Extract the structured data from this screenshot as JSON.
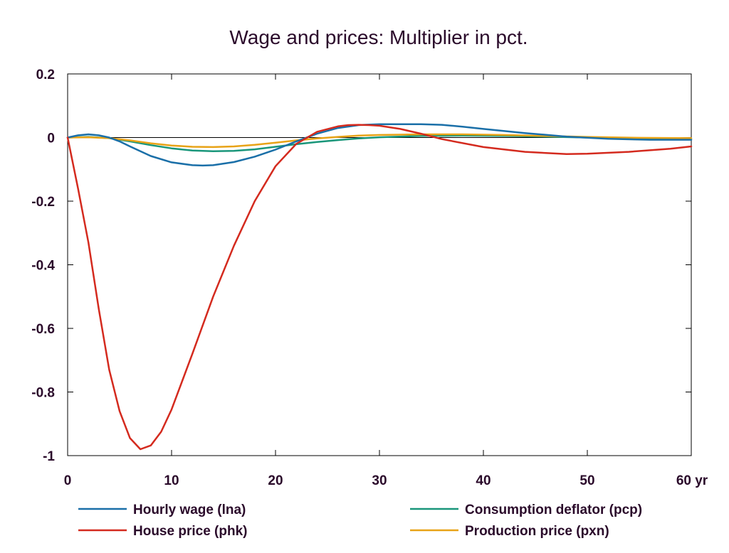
{
  "chart_data": {
    "type": "line",
    "title": "Wage and prices: Multiplier in pct.",
    "xlabel": "",
    "ylabel": "",
    "x_unit_label": "yr",
    "xlim": [
      0,
      60
    ],
    "ylim": [
      -1,
      0.2
    ],
    "x_ticks": [
      0,
      10,
      20,
      30,
      40,
      50,
      60
    ],
    "x_tick_labels": [
      "0",
      "10",
      "20",
      "30",
      "40",
      "50",
      "60 yr"
    ],
    "y_ticks": [
      0.2,
      0,
      -0.2,
      -0.4,
      -0.6,
      -0.8,
      -1
    ],
    "y_tick_labels": [
      "0.2",
      "0",
      "-0.2",
      "-0.4",
      "-0.6",
      "-0.8",
      "-1"
    ],
    "grid": false,
    "zero_line": true,
    "legend_position": "bottom",
    "series": [
      {
        "name": "Hourly wage (lna)",
        "color": "#1a6fa8",
        "x": [
          0,
          1,
          2,
          3,
          4,
          5,
          6,
          8,
          10,
          12,
          13,
          14,
          16,
          18,
          20,
          22,
          24,
          26,
          28,
          30,
          32,
          34,
          36,
          38,
          40,
          44,
          48,
          52,
          56,
          60
        ],
        "y": [
          0,
          0.007,
          0.01,
          0.007,
          0,
          -0.012,
          -0.028,
          -0.058,
          -0.078,
          -0.087,
          -0.088,
          -0.087,
          -0.077,
          -0.06,
          -0.038,
          -0.012,
          0.012,
          0.03,
          0.039,
          0.042,
          0.042,
          0.042,
          0.04,
          0.034,
          0.027,
          0.014,
          0.003,
          -0.004,
          -0.007,
          -0.007
        ]
      },
      {
        "name": "House price (phk)",
        "color": "#d42a1e",
        "x": [
          0,
          1,
          2,
          3,
          4,
          5,
          6,
          7,
          8,
          9,
          10,
          12,
          14,
          16,
          18,
          20,
          22,
          24,
          26,
          27,
          28,
          29,
          30,
          32,
          34,
          36,
          40,
          44,
          48,
          50,
          54,
          58,
          60
        ],
        "y": [
          0,
          -0.16,
          -0.33,
          -0.54,
          -0.73,
          -0.86,
          -0.945,
          -0.98,
          -0.968,
          -0.925,
          -0.855,
          -0.68,
          -0.5,
          -0.34,
          -0.2,
          -0.09,
          -0.02,
          0.018,
          0.035,
          0.039,
          0.04,
          0.039,
          0.037,
          0.027,
          0.012,
          -0.005,
          -0.03,
          -0.045,
          -0.052,
          -0.051,
          -0.045,
          -0.035,
          -0.028
        ]
      },
      {
        "name": "Consumption deflator (pcp)",
        "color": "#19967a",
        "x": [
          0,
          2,
          4,
          6,
          8,
          10,
          12,
          14,
          16,
          18,
          20,
          22,
          24,
          26,
          28,
          30,
          34,
          38,
          42,
          46,
          50,
          55,
          60
        ],
        "y": [
          0,
          0.002,
          -0.002,
          -0.012,
          -0.024,
          -0.034,
          -0.041,
          -0.043,
          -0.042,
          -0.037,
          -0.029,
          -0.021,
          -0.014,
          -0.008,
          -0.003,
          0.001,
          0.005,
          0.006,
          0.005,
          0.003,
          0,
          -0.003,
          -0.004
        ]
      },
      {
        "name": "Production price (pxn)",
        "color": "#e8a317",
        "x": [
          0,
          2,
          4,
          6,
          8,
          10,
          12,
          14,
          16,
          18,
          20,
          22,
          24,
          26,
          28,
          30,
          34,
          38,
          42,
          46,
          50,
          55,
          60
        ],
        "y": [
          0,
          0.001,
          -0.002,
          -0.009,
          -0.018,
          -0.025,
          -0.029,
          -0.03,
          -0.028,
          -0.023,
          -0.016,
          -0.009,
          -0.003,
          0.002,
          0.006,
          0.008,
          0.01,
          0.01,
          0.008,
          0.005,
          0.002,
          -0.001,
          -0.002
        ]
      }
    ]
  }
}
